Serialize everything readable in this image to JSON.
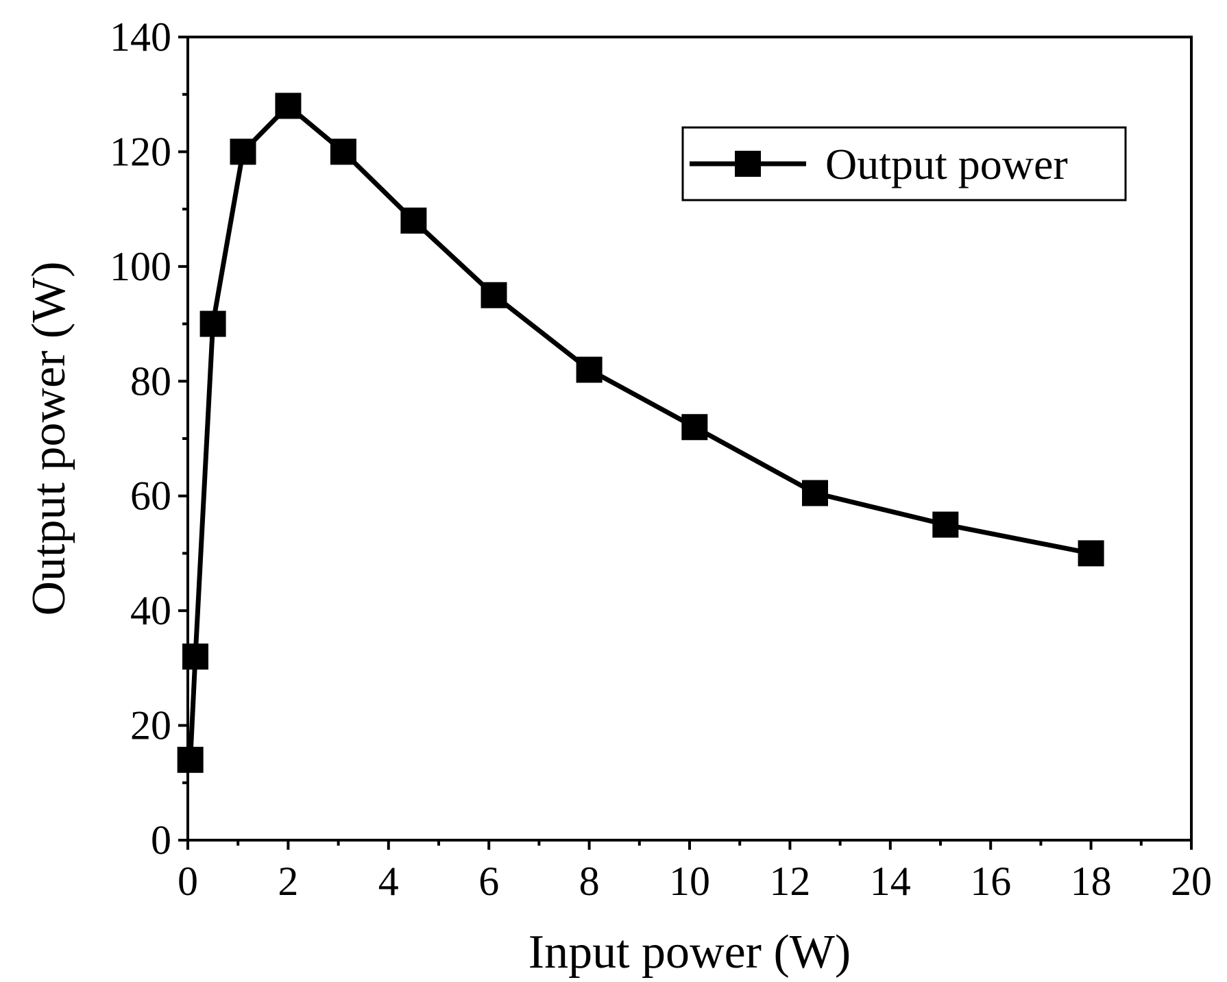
{
  "chart_data": {
    "type": "line",
    "xlabel": "Input power (W)",
    "ylabel": "Output power (W)",
    "xlim": [
      0,
      20
    ],
    "ylim": [
      0,
      140
    ],
    "x_ticks": [
      0,
      2,
      4,
      6,
      8,
      10,
      12,
      14,
      16,
      18,
      20
    ],
    "y_ticks": [
      0,
      20,
      40,
      60,
      80,
      100,
      120,
      140
    ],
    "grid": false,
    "legend": {
      "position": "top-right",
      "entries": [
        "Output power"
      ]
    },
    "series": [
      {
        "name": "Output power",
        "color": "#000000",
        "marker": "square",
        "x": [
          0.05,
          0.15,
          0.5,
          1.1,
          2.0,
          3.1,
          4.5,
          6.1,
          8.0,
          10.1,
          12.5,
          15.1,
          18.0
        ],
        "y": [
          14,
          32,
          90,
          120,
          128,
          120,
          108,
          95,
          82,
          72,
          60.5,
          55,
          50
        ]
      }
    ]
  }
}
